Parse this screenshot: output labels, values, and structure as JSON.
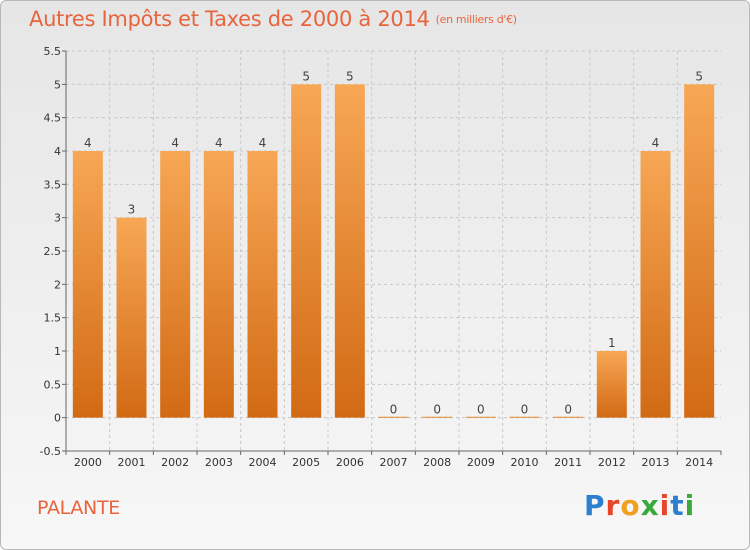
{
  "header": {
    "title": "Autres Impôts et Taxes de 2000 à 2014",
    "unit_note": "(en milliers d'€)"
  },
  "footer": {
    "commune": "PALANTE",
    "brand_letters": [
      "P",
      "r",
      "o",
      "x",
      "i",
      "t",
      "i"
    ],
    "brand_colors": [
      "#2e7fd0",
      "#e8462a",
      "#f0a020",
      "#3aa83a",
      "#e8462a",
      "#2e7fd0",
      "#3aa83a"
    ]
  },
  "chart_data": {
    "type": "bar",
    "title": "Autres Impôts et Taxes de 2000 à 2014",
    "subtitle": "(en milliers d'€)",
    "categories": [
      "2000",
      "2001",
      "2002",
      "2003",
      "2004",
      "2005",
      "2006",
      "2007",
      "2008",
      "2009",
      "2010",
      "2011",
      "2012",
      "2013",
      "2014"
    ],
    "values": [
      4,
      3,
      4,
      4,
      4,
      5,
      5,
      0,
      0,
      0,
      0,
      0,
      1,
      4,
      5
    ],
    "data_labels": [
      "4",
      "3",
      "4",
      "4",
      "4",
      "5",
      "5",
      "0",
      "0",
      "0",
      "0",
      "0",
      "1",
      "4",
      "5"
    ],
    "ylim": [
      -0.5,
      5.5
    ],
    "yticks": [
      -0.5,
      0,
      0.5,
      1,
      1.5,
      2,
      2.5,
      3,
      3.5,
      4,
      4.5,
      5,
      5.5
    ],
    "ytick_labels": [
      "-0.5",
      "0",
      "0.5",
      "1",
      "1.5",
      "2",
      "2.5",
      "3",
      "3.5",
      "4",
      "4.5",
      "5",
      "5.5"
    ],
    "grid": true,
    "bar_color_light": "#f7a755",
    "bar_color_dark": "#d26a14",
    "grid_color": "#c8c8c8"
  }
}
